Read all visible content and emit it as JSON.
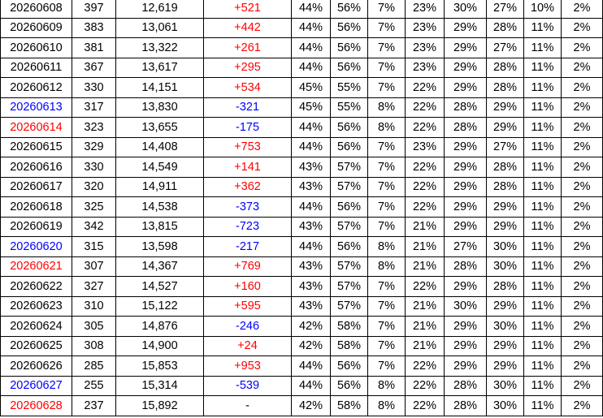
{
  "table": {
    "rows": [
      [
        "20260608",
        "397",
        "12,619",
        "+521",
        "44%",
        "56%",
        "7%",
        "23%",
        "30%",
        "27%",
        "10%",
        "2%"
      ],
      [
        "20260609",
        "383",
        "13,061",
        "+442",
        "44%",
        "56%",
        "7%",
        "23%",
        "29%",
        "28%",
        "11%",
        "2%"
      ],
      [
        "20260610",
        "381",
        "13,322",
        "+261",
        "44%",
        "56%",
        "7%",
        "23%",
        "29%",
        "27%",
        "11%",
        "2%"
      ],
      [
        "20260611",
        "367",
        "13,617",
        "+295",
        "44%",
        "56%",
        "7%",
        "23%",
        "29%",
        "28%",
        "11%",
        "2%"
      ],
      [
        "20260612",
        "330",
        "14,151",
        "+534",
        "45%",
        "55%",
        "7%",
        "22%",
        "29%",
        "28%",
        "11%",
        "2%"
      ],
      [
        "20260613",
        "317",
        "13,830",
        "-321",
        "45%",
        "55%",
        "8%",
        "22%",
        "28%",
        "29%",
        "11%",
        "2%"
      ],
      [
        "20260614",
        "323",
        "13,655",
        "-175",
        "44%",
        "56%",
        "8%",
        "22%",
        "28%",
        "29%",
        "11%",
        "2%"
      ],
      [
        "20260615",
        "329",
        "14,408",
        "+753",
        "44%",
        "56%",
        "7%",
        "23%",
        "29%",
        "27%",
        "11%",
        "2%"
      ],
      [
        "20260616",
        "330",
        "14,549",
        "+141",
        "43%",
        "57%",
        "7%",
        "22%",
        "29%",
        "28%",
        "11%",
        "2%"
      ],
      [
        "20260617",
        "320",
        "14,911",
        "+362",
        "43%",
        "57%",
        "7%",
        "22%",
        "29%",
        "28%",
        "11%",
        "2%"
      ],
      [
        "20260618",
        "325",
        "14,538",
        "-373",
        "44%",
        "56%",
        "7%",
        "22%",
        "29%",
        "29%",
        "11%",
        "2%"
      ],
      [
        "20260619",
        "342",
        "13,815",
        "-723",
        "43%",
        "57%",
        "7%",
        "21%",
        "29%",
        "29%",
        "11%",
        "2%"
      ],
      [
        "20260620",
        "315",
        "13,598",
        "-217",
        "44%",
        "56%",
        "8%",
        "21%",
        "27%",
        "30%",
        "11%",
        "2%"
      ],
      [
        "20260621",
        "307",
        "14,367",
        "+769",
        "43%",
        "57%",
        "8%",
        "21%",
        "28%",
        "30%",
        "11%",
        "2%"
      ],
      [
        "20260622",
        "327",
        "14,527",
        "+160",
        "43%",
        "57%",
        "7%",
        "22%",
        "29%",
        "28%",
        "11%",
        "2%"
      ],
      [
        "20260623",
        "310",
        "15,122",
        "+595",
        "43%",
        "57%",
        "7%",
        "21%",
        "30%",
        "29%",
        "11%",
        "2%"
      ],
      [
        "20260624",
        "305",
        "14,876",
        "-246",
        "42%",
        "58%",
        "7%",
        "21%",
        "29%",
        "30%",
        "11%",
        "2%"
      ],
      [
        "20260625",
        "308",
        "14,900",
        "+24",
        "42%",
        "58%",
        "7%",
        "21%",
        "29%",
        "29%",
        "11%",
        "2%"
      ],
      [
        "20260626",
        "285",
        "15,853",
        "+953",
        "44%",
        "56%",
        "7%",
        "22%",
        "29%",
        "29%",
        "11%",
        "2%"
      ],
      [
        "20260627",
        "255",
        "15,314",
        "-539",
        "44%",
        "56%",
        "8%",
        "22%",
        "28%",
        "30%",
        "11%",
        "2%"
      ],
      [
        "20260628",
        "237",
        "15,892",
        "-",
        "42%",
        "58%",
        "8%",
        "22%",
        "28%",
        "30%",
        "11%",
        "2%"
      ]
    ],
    "date_colors": [
      "#000000",
      "#000000",
      "#000000",
      "#000000",
      "#000000",
      "#0000ff",
      "#ff0000",
      "#000000",
      "#000000",
      "#000000",
      "#000000",
      "#000000",
      "#0000ff",
      "#ff0000",
      "#000000",
      "#000000",
      "#000000",
      "#000000",
      "#000000",
      "#0000ff",
      "#ff0000"
    ],
    "change_colors": [
      "#ff0000",
      "#ff0000",
      "#ff0000",
      "#ff0000",
      "#ff0000",
      "#0000ff",
      "#0000ff",
      "#ff0000",
      "#ff0000",
      "#ff0000",
      "#0000ff",
      "#0000ff",
      "#0000ff",
      "#ff0000",
      "#ff0000",
      "#ff0000",
      "#0000ff",
      "#ff0000",
      "#ff0000",
      "#0000ff",
      "#000000"
    ]
  }
}
